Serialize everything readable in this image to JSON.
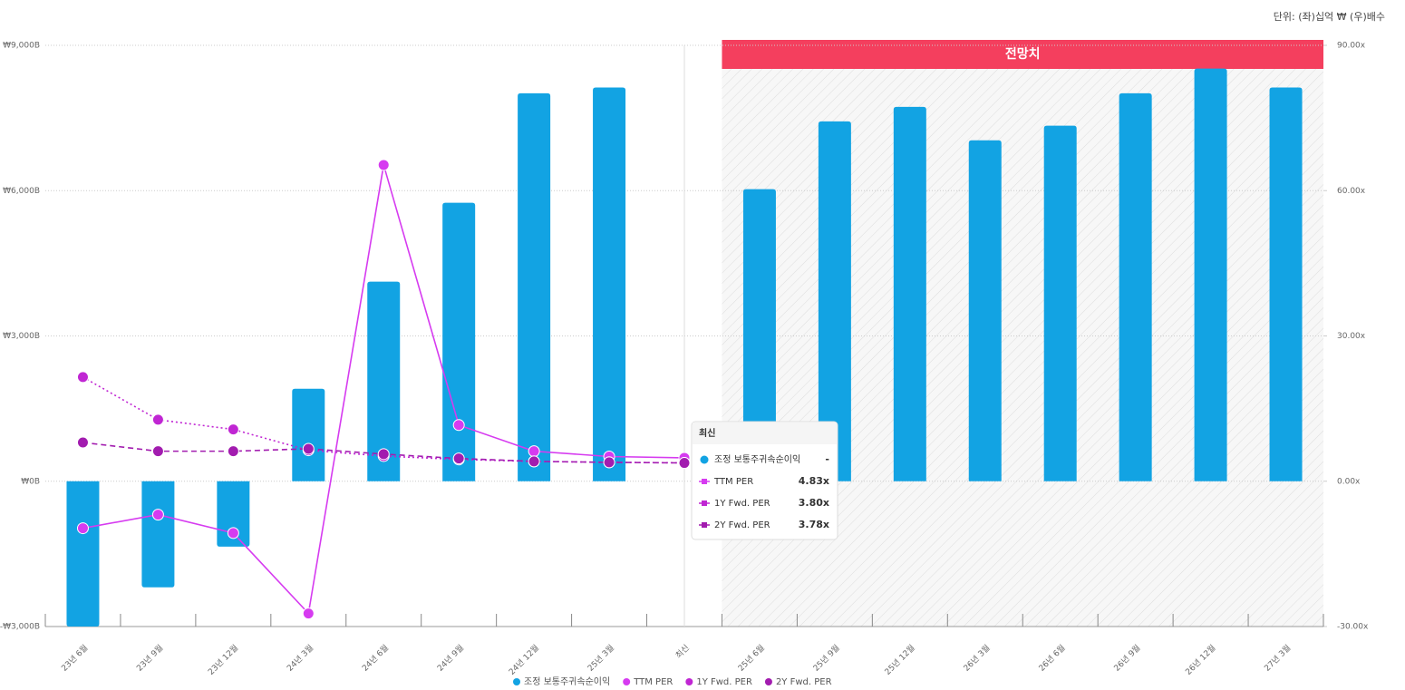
{
  "chart_data": {
    "type": "bar-line",
    "unit_note": "단위: (좌)십억 ₩ (우)배수",
    "forecast_label": "전망치",
    "categories": [
      "23년 6월",
      "23년 9월",
      "23년 12월",
      "24년 3월",
      "24년 6월",
      "24년 9월",
      "24년 12월",
      "25년 3월",
      "최신",
      "25년 6월",
      "25년 9월",
      "25년 12월",
      "26년 3월",
      "26년 6월",
      "26년 9월",
      "26년 12월",
      "27년 3월"
    ],
    "forecast_start": "25년 6월",
    "series": [
      {
        "name": "조정 보통주귀속순이익",
        "type": "bar",
        "color": "#12a3e3",
        "axis": "y",
        "values": [
          -3000,
          -2190,
          -1350,
          1910,
          4120,
          5750,
          8010,
          8130,
          null,
          6030,
          7430,
          7730,
          7040,
          7340,
          8010,
          8520,
          8130
        ]
      },
      {
        "name": "TTM PER",
        "type": "line",
        "color": "#d63bf0",
        "axis": "y2",
        "dash": "solid",
        "values": [
          -9.7,
          -6.9,
          -10.7,
          -27.3,
          65.3,
          11.6,
          6.2,
          5.1,
          4.83,
          null,
          null,
          null,
          null,
          null,
          null,
          null,
          null
        ]
      },
      {
        "name": "1Y Fwd. PER",
        "type": "line",
        "color": "#c026d3",
        "axis": "y2",
        "dash": "dotted",
        "values": [
          21.5,
          12.7,
          10.7,
          6.4,
          5.2,
          4.5,
          4.1,
          3.9,
          3.8,
          null,
          null,
          null,
          null,
          null,
          null,
          null,
          null
        ]
      },
      {
        "name": "2Y Fwd. PER",
        "type": "line",
        "color": "#a21caf",
        "axis": "y2",
        "dash": "dashed",
        "values": [
          8.0,
          6.2,
          6.2,
          6.7,
          5.6,
          4.7,
          4.1,
          3.9,
          3.78,
          null,
          null,
          null,
          null,
          null,
          null,
          null,
          null
        ]
      }
    ],
    "ylim": [
      -3000,
      9000
    ],
    "yticks": [
      {
        "value": -3000,
        "label": "-₩3,000B"
      },
      {
        "value": 0,
        "label": "₩0B"
      },
      {
        "value": 3000,
        "label": "₩3,000B"
      },
      {
        "value": 6000,
        "label": "₩6,000B"
      },
      {
        "value": 9000,
        "label": "₩9,000B"
      }
    ],
    "y2lim": [
      -30,
      90
    ],
    "y2ticks": [
      {
        "value": -30,
        "label": "-30.00x"
      },
      {
        "value": 0,
        "label": "0.00x"
      },
      {
        "value": 30,
        "label": "30.00x"
      },
      {
        "value": 60,
        "label": "60.00x"
      },
      {
        "value": 90,
        "label": "90.00x"
      }
    ],
    "grid": true,
    "tooltip": {
      "title": "최신",
      "values": [
        "-",
        "4.83x",
        "3.80x",
        "3.78x"
      ]
    }
  }
}
